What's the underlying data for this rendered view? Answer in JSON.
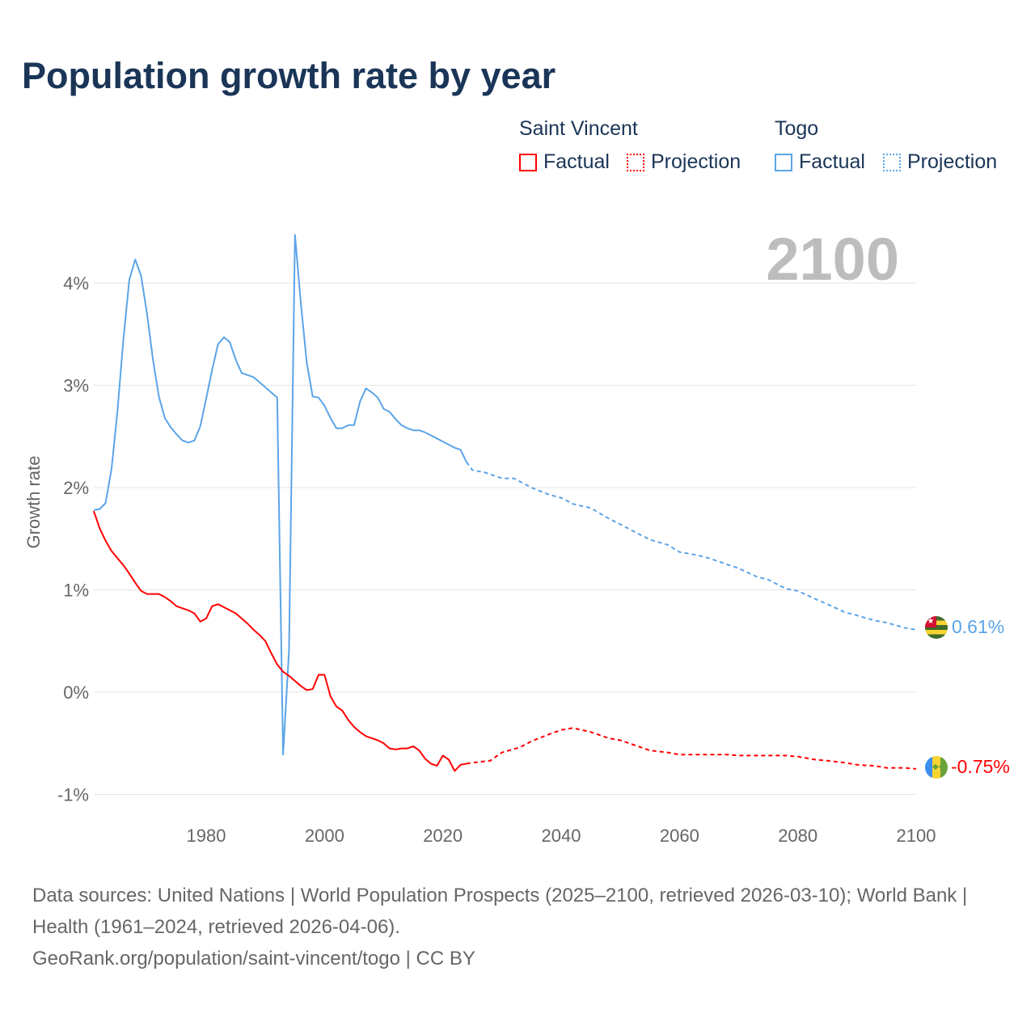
{
  "title": "Population growth rate by year",
  "legend": {
    "groups": [
      {
        "name": "Saint Vincent",
        "color": "#ff0000",
        "factual": "Factual",
        "projection": "Projection"
      },
      {
        "name": "Togo",
        "color": "#5ba4e8",
        "factual": "Factual",
        "projection": "Projection"
      }
    ]
  },
  "current_year": "2100",
  "end_labels": {
    "togo": "0.61%",
    "saint_vincent": "-0.75%"
  },
  "flags": {
    "togo": "togo-flag-icon",
    "saint_vincent": "saint-vincent-flag-icon"
  },
  "source": {
    "line1": "Data sources: United Nations | World Population Prospects (2025–2100, retrieved 2026-03-10); World Bank | Health (1961–2024, retrieved 2026-04-06).",
    "line2": "GeoRank.org/population/saint-vincent/togo | CC BY"
  },
  "chart_data": {
    "type": "line",
    "title": "Population growth rate by year",
    "xlabel": "",
    "ylabel": "Growth rate",
    "xlim": [
      1961,
      2100
    ],
    "ylim": [
      -1.2,
      4.6
    ],
    "xticks": [
      1980,
      2000,
      2020,
      2040,
      2060,
      2080,
      2100
    ],
    "xtick_labels": [
      "1980",
      "2000",
      "2020",
      "2040",
      "2060",
      "2080",
      "2100"
    ],
    "yticks": [
      -1,
      0,
      1,
      2,
      3,
      4
    ],
    "ytick_labels": [
      "-1%",
      "0%",
      "1%",
      "2%",
      "3%",
      "4%"
    ],
    "grid": true,
    "series": [
      {
        "name": "Togo",
        "kind": "Factual",
        "color": "#5ba4e8",
        "x": [
          1961,
          1962,
          1963,
          1964,
          1965,
          1966,
          1967,
          1968,
          1969,
          1970,
          1971,
          1972,
          1973,
          1974,
          1975,
          1976,
          1977,
          1978,
          1979,
          1980,
          1981,
          1982,
          1983,
          1984,
          1985,
          1986,
          1987,
          1988,
          1989,
          1990,
          1991,
          1992,
          1993,
          1994,
          1995,
          1996,
          1997,
          1998,
          1999,
          2000,
          2001,
          2002,
          2003,
          2004,
          2005,
          2006,
          2007,
          2008,
          2009,
          2010,
          2011,
          2012,
          2013,
          2014,
          2015,
          2016,
          2017,
          2018,
          2019,
          2020,
          2021,
          2022,
          2023,
          2024
        ],
        "y": [
          1.78,
          1.79,
          1.85,
          2.18,
          2.75,
          3.45,
          4.03,
          4.23,
          4.07,
          3.7,
          3.25,
          2.89,
          2.68,
          2.59,
          2.52,
          2.46,
          2.44,
          2.46,
          2.6,
          2.87,
          3.15,
          3.4,
          3.47,
          3.42,
          3.25,
          3.12,
          3.1,
          3.08,
          3.03,
          2.98,
          2.93,
          2.88,
          -0.61,
          0.4,
          4.47,
          3.8,
          3.22,
          2.89,
          2.88,
          2.8,
          2.68,
          2.58,
          2.58,
          2.61,
          2.61,
          2.84,
          2.97,
          2.93,
          2.88,
          2.77,
          2.74,
          2.67,
          2.61,
          2.58,
          2.56,
          2.56,
          2.54,
          2.51,
          2.48,
          2.45,
          2.42,
          2.39,
          2.37,
          2.25
        ]
      },
      {
        "name": "Togo",
        "kind": "Projection",
        "color": "#5ba4e8",
        "x": [
          2024,
          2025,
          2027,
          2030,
          2032,
          2035,
          2038,
          2040,
          2042,
          2045,
          2048,
          2050,
          2052,
          2055,
          2058,
          2060,
          2063,
          2065,
          2068,
          2070,
          2073,
          2075,
          2078,
          2080,
          2083,
          2085,
          2088,
          2090,
          2093,
          2095,
          2098,
          2100
        ],
        "y": [
          2.25,
          2.17,
          2.15,
          2.09,
          2.09,
          2.0,
          1.93,
          1.9,
          1.84,
          1.8,
          1.7,
          1.64,
          1.58,
          1.49,
          1.44,
          1.37,
          1.34,
          1.31,
          1.25,
          1.21,
          1.13,
          1.1,
          1.01,
          0.99,
          0.91,
          0.86,
          0.78,
          0.75,
          0.7,
          0.68,
          0.63,
          0.61
        ]
      },
      {
        "name": "Saint Vincent",
        "kind": "Factual",
        "color": "#ff0000",
        "x": [
          1961,
          1962,
          1963,
          1964,
          1965,
          1966,
          1967,
          1968,
          1969,
          1970,
          1971,
          1972,
          1973,
          1974,
          1975,
          1976,
          1977,
          1978,
          1979,
          1980,
          1981,
          1982,
          1983,
          1984,
          1985,
          1986,
          1987,
          1988,
          1989,
          1990,
          1991,
          1992,
          1993,
          1994,
          1995,
          1996,
          1997,
          1998,
          1999,
          2000,
          2001,
          2002,
          2003,
          2004,
          2005,
          2006,
          2007,
          2008,
          2009,
          2010,
          2011,
          2012,
          2013,
          2014,
          2015,
          2016,
          2017,
          2018,
          2019,
          2020,
          2021,
          2022,
          2023,
          2024
        ],
        "y": [
          1.77,
          1.6,
          1.48,
          1.38,
          1.31,
          1.24,
          1.16,
          1.07,
          0.99,
          0.96,
          0.96,
          0.96,
          0.93,
          0.89,
          0.84,
          0.82,
          0.8,
          0.77,
          0.69,
          0.72,
          0.84,
          0.86,
          0.83,
          0.8,
          0.77,
          0.72,
          0.67,
          0.61,
          0.56,
          0.5,
          0.38,
          0.27,
          0.2,
          0.16,
          0.11,
          0.06,
          0.02,
          0.03,
          0.17,
          0.17,
          -0.04,
          -0.14,
          -0.18,
          -0.27,
          -0.34,
          -0.39,
          -0.43,
          -0.45,
          -0.47,
          -0.5,
          -0.55,
          -0.56,
          -0.55,
          -0.55,
          -0.53,
          -0.57,
          -0.65,
          -0.7,
          -0.72,
          -0.62,
          -0.66,
          -0.77,
          -0.71,
          -0.7
        ]
      },
      {
        "name": "Saint Vincent",
        "kind": "Projection",
        "color": "#ff0000",
        "x": [
          2024,
          2025,
          2028,
          2030,
          2033,
          2035,
          2038,
          2040,
          2042,
          2045,
          2048,
          2050,
          2053,
          2055,
          2058,
          2060,
          2063,
          2065,
          2068,
          2070,
          2073,
          2075,
          2078,
          2080,
          2083,
          2085,
          2088,
          2090,
          2093,
          2095,
          2098,
          2100
        ],
        "y": [
          -0.7,
          -0.69,
          -0.67,
          -0.59,
          -0.54,
          -0.48,
          -0.41,
          -0.37,
          -0.35,
          -0.39,
          -0.45,
          -0.47,
          -0.53,
          -0.57,
          -0.59,
          -0.61,
          -0.61,
          -0.61,
          -0.61,
          -0.62,
          -0.62,
          -0.62,
          -0.62,
          -0.63,
          -0.66,
          -0.67,
          -0.69,
          -0.71,
          -0.72,
          -0.74,
          -0.74,
          -0.75
        ]
      }
    ]
  }
}
